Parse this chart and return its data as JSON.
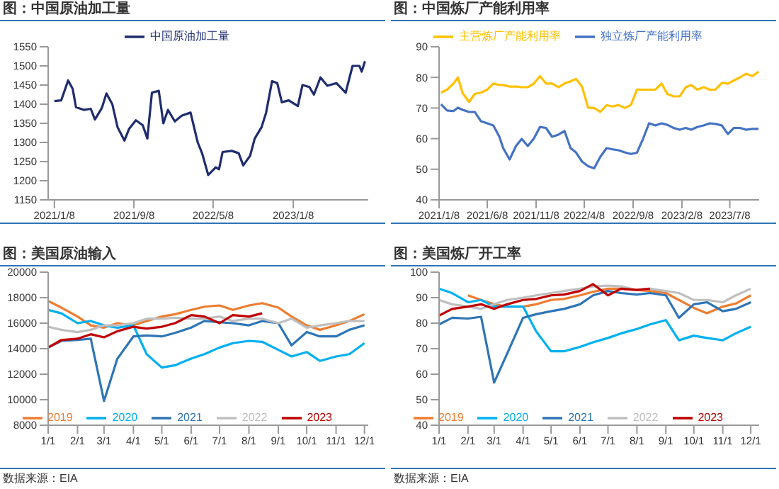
{
  "chart_data": [
    {
      "type": "line",
      "title": "图：中国原油加工量",
      "legend": "top",
      "ylim": [
        1150,
        1550
      ],
      "yticks": [
        1150,
        1200,
        1250,
        1300,
        1350,
        1400,
        1450,
        1500,
        1550
      ],
      "xlim": [
        "2020-12-20",
        "2023-08-25"
      ],
      "xticks": [
        {
          "value": "2021-01-08",
          "label": "2021/1/8"
        },
        {
          "value": "2021-09-08",
          "label": "2021/9/8"
        },
        {
          "value": "2022-05-08",
          "label": "2022/5/8"
        },
        {
          "value": "2023-01-08",
          "label": "2023/1/8"
        }
      ],
      "x": [
        "2021-01-08",
        "2021-01-29",
        "2021-02-19",
        "2021-03-05",
        "2021-03-15",
        "2021-04-08",
        "2021-04-29",
        "2021-05-12",
        "2021-06-02",
        "2021-06-16",
        "2021-07-04",
        "2021-07-20",
        "2021-08-10",
        "2021-08-24",
        "2021-09-14",
        "2021-10-05",
        "2021-10-19",
        "2021-11-02",
        "2021-11-23",
        "2021-12-07",
        "2021-12-21",
        "2022-01-11",
        "2022-02-01",
        "2022-02-28",
        "2022-03-22",
        "2022-04-05",
        "2022-04-23",
        "2022-05-16",
        "2022-05-26",
        "2022-06-06",
        "2022-07-04",
        "2022-07-25",
        "2022-08-08",
        "2022-08-29",
        "2022-09-12",
        "2022-10-03",
        "2022-10-17",
        "2022-11-04",
        "2022-11-20",
        "2022-12-04",
        "2022-12-25",
        "2023-01-22",
        "2023-02-05",
        "2023-02-26",
        "2023-03-12",
        "2023-04-01",
        "2023-04-22",
        "2023-05-20",
        "2023-06-17",
        "2023-07-08",
        "2023-07-29",
        "2023-08-05",
        "2023-08-15"
      ],
      "series": [
        {
          "name": "中国原油加工量",
          "color": "#1f2d6e",
          "values": [
            1408,
            1410,
            1462,
            1440,
            1392,
            1385,
            1388,
            1360,
            1390,
            1428,
            1400,
            1340,
            1305,
            1335,
            1358,
            1345,
            1310,
            1430,
            1435,
            1350,
            1385,
            1355,
            1370,
            1378,
            1300,
            1270,
            1215,
            1235,
            1230,
            1275,
            1278,
            1272,
            1240,
            1265,
            1310,
            1340,
            1378,
            1460,
            1455,
            1405,
            1410,
            1395,
            1450,
            1445,
            1425,
            1470,
            1448,
            1455,
            1430,
            1500,
            1500,
            1485,
            1512
          ]
        }
      ]
    },
    {
      "type": "line",
      "title": "图：中国炼厂产能利用率",
      "legend": "top",
      "ylim": [
        40,
        90
      ],
      "yticks": [
        40,
        50,
        60,
        70,
        80,
        90
      ],
      "xlim": [
        "2021-01-08",
        "2023-10-08"
      ],
      "xticks": [
        {
          "value": "2021-01-08",
          "label": "2021/1/8"
        },
        {
          "value": "2021-06-08",
          "label": "2021/6/8"
        },
        {
          "value": "2021-11-08",
          "label": "2021/11/8"
        },
        {
          "value": "2022-04-08",
          "label": "2022/4/8"
        },
        {
          "value": "2022-09-08",
          "label": "2022/9/8"
        },
        {
          "value": "2023-02-08",
          "label": "2023/2/8"
        },
        {
          "value": "2023-07-08",
          "label": "2023/7/8"
        }
      ],
      "x": [
        "2021-01-14",
        "2021-02-02",
        "2021-02-22",
        "2021-03-08",
        "2021-03-23",
        "2021-04-12",
        "2021-04-30",
        "2021-05-19",
        "2021-06-08",
        "2021-06-27",
        "2021-07-16",
        "2021-07-28",
        "2021-08-17",
        "2021-09-06",
        "2021-09-24",
        "2021-10-13",
        "2021-11-01",
        "2021-11-20",
        "2021-12-09",
        "2021-12-28",
        "2022-01-17",
        "2022-02-05",
        "2022-02-24",
        "2022-03-13",
        "2022-04-01",
        "2022-04-20",
        "2022-05-09",
        "2022-05-28",
        "2022-06-17",
        "2022-07-06",
        "2022-07-24",
        "2022-08-13",
        "2022-09-01",
        "2022-09-20",
        "2022-10-09",
        "2022-10-28",
        "2022-11-17",
        "2022-12-06",
        "2022-12-24",
        "2023-01-13",
        "2023-02-01",
        "2023-02-20",
        "2023-03-09",
        "2023-03-28",
        "2023-04-17",
        "2023-05-06",
        "2023-05-24",
        "2023-06-13",
        "2023-07-02",
        "2023-07-21",
        "2023-08-09",
        "2023-08-28",
        "2023-09-17",
        "2023-10-06"
      ],
      "series": [
        {
          "name": "主营炼厂产能利用率",
          "color": "#ffc000",
          "values": [
            75,
            76,
            78,
            80,
            74.8,
            72,
            74.6,
            75,
            76,
            78,
            77.5,
            77.5,
            77,
            77,
            76.8,
            76.8,
            78,
            80.4,
            78,
            78,
            76.8,
            78,
            78.7,
            79.5,
            77,
            70.1,
            70,
            68.7,
            70.9,
            70.5,
            71,
            70,
            71,
            76,
            76,
            76,
            76,
            78,
            74.6,
            73.8,
            73.8,
            76.8,
            77.5,
            76,
            76.8,
            76,
            76,
            78.2,
            78,
            79,
            80,
            81.2,
            80.4,
            81.9
          ]
        },
        {
          "name": "独立炼厂产能利用率",
          "color": "#4472c4",
          "values": [
            71.2,
            69.2,
            69,
            70.1,
            69.4,
            68.7,
            68.7,
            65.7,
            65,
            64.3,
            60.6,
            56.9,
            53.2,
            57.6,
            59.9,
            57.6,
            60,
            63.8,
            63.5,
            60.6,
            61.3,
            62.5,
            56.9,
            55.5,
            52.5,
            51,
            50.3,
            54,
            56.9,
            56.5,
            56.2,
            55.5,
            55,
            55.4,
            59.9,
            65,
            64.3,
            65,
            64.5,
            63.5,
            62.9,
            63.5,
            62.9,
            63.8,
            64.3,
            65,
            64.8,
            64.3,
            61.5,
            63.5,
            63.5,
            62.9,
            63.2,
            63.2
          ]
        }
      ]
    },
    {
      "type": "line",
      "title": "图：美国原油输入",
      "legend": "bottom",
      "annotations": [
        "数据来源：EIA"
      ],
      "ylim": [
        8000,
        20000
      ],
      "yticks": [
        8000,
        10000,
        12000,
        14000,
        16000,
        18000,
        20000
      ],
      "xlim": [
        "--01-01",
        "--12-05"
      ],
      "xticks": [
        {
          "value": "--01-01",
          "label": "1/1"
        },
        {
          "value": "--02-01",
          "label": "2/1"
        },
        {
          "value": "--03-01",
          "label": "3/1"
        },
        {
          "value": "--04-01",
          "label": "4/1"
        },
        {
          "value": "--05-01",
          "label": "5/1"
        },
        {
          "value": "--06-01",
          "label": "6/1"
        },
        {
          "value": "--07-01",
          "label": "7/1"
        },
        {
          "value": "--08-01",
          "label": "8/1"
        },
        {
          "value": "--09-01",
          "label": "9/1"
        },
        {
          "value": "--10-01",
          "label": "10/1"
        },
        {
          "value": "--11-01",
          "label": "11/1"
        },
        {
          "value": "--12-01",
          "label": "12/1"
        }
      ],
      "x": [
        "--01-01",
        "--01-15",
        "--02-01",
        "--02-15",
        "--03-01",
        "--03-15",
        "--04-01",
        "--04-15",
        "--05-01",
        "--05-15",
        "--06-01",
        "--06-15",
        "--07-01",
        "--07-15",
        "--08-01",
        "--08-15",
        "--09-01",
        "--09-15",
        "--10-01",
        "--10-15",
        "--11-01",
        "--11-15",
        "--12-01"
      ],
      "series": [
        {
          "name": "2019",
          "color": "#ed7d31",
          "values": [
            17740,
            17220,
            16520,
            15830,
            15650,
            16000,
            15830,
            16170,
            16520,
            16700,
            17040,
            17290,
            17390,
            17040,
            17390,
            17570,
            17220,
            16520,
            15830,
            15480,
            15830,
            16170,
            16700
          ]
        },
        {
          "name": "2020",
          "color": "#00b0f0",
          "values": [
            17040,
            16770,
            16000,
            16170,
            15830,
            15650,
            15830,
            13570,
            12520,
            12700,
            13220,
            13570,
            14090,
            14430,
            14610,
            14540,
            13910,
            13390,
            13740,
            13040,
            13390,
            13570,
            14430
          ]
        },
        {
          "name": "2021",
          "color": "#2e75b6",
          "values": [
            14090,
            14610,
            14680,
            14780,
            9900,
            13200,
            14960,
            15030,
            14960,
            15240,
            15650,
            16170,
            16070,
            16000,
            15830,
            16170,
            16000,
            14260,
            15300,
            14960,
            14960,
            15480,
            15830
          ]
        },
        {
          "name": "2022",
          "color": "#bfbfbf",
          "values": [
            15720,
            15480,
            15300,
            15480,
            15830,
            15830,
            16000,
            16350,
            16350,
            16420,
            16350,
            16350,
            16520,
            16170,
            16350,
            16350,
            16000,
            16350,
            15650,
            15830,
            16000,
            16170,
            16170
          ]
        },
        {
          "name": "2023",
          "color": "#c00000",
          "values": [
            14090,
            14680,
            14780,
            15130,
            14890,
            15370,
            15720,
            15580,
            15720,
            16000,
            16630,
            16520,
            16000,
            16630,
            16520,
            16770,
            null,
            null,
            null,
            null,
            null,
            null,
            null
          ]
        }
      ]
    },
    {
      "type": "line",
      "title": "图：美国炼厂开工率",
      "legend": "bottom",
      "annotations": [
        "数据来源：EIA"
      ],
      "ylim": [
        40,
        100
      ],
      "yticks": [
        40,
        50,
        60,
        70,
        80,
        90,
        100
      ],
      "xlim": [
        "--01-01",
        "--12-10"
      ],
      "xticks": [
        {
          "value": "--01-01",
          "label": "1/1"
        },
        {
          "value": "--02-01",
          "label": "2/1"
        },
        {
          "value": "--03-01",
          "label": "3/1"
        },
        {
          "value": "--04-01",
          "label": "4/1"
        },
        {
          "value": "--05-01",
          "label": "5/1"
        },
        {
          "value": "--06-01",
          "label": "6/1"
        },
        {
          "value": "--07-01",
          "label": "7/1"
        },
        {
          "value": "--08-01",
          "label": "8/1"
        },
        {
          "value": "--09-01",
          "label": "9/1"
        },
        {
          "value": "--10-01",
          "label": "10/1"
        },
        {
          "value": "--11-01",
          "label": "11/1"
        },
        {
          "value": "--12-01",
          "label": "12/1"
        }
      ],
      "x": [
        "--01-01",
        "--01-15",
        "--02-01",
        "--02-15",
        "--03-01",
        "--03-15",
        "--04-01",
        "--04-15",
        "--05-01",
        "--05-15",
        "--06-01",
        "--06-15",
        "--07-01",
        "--07-15",
        "--08-01",
        "--08-15",
        "--09-01",
        "--09-15",
        "--10-01",
        "--10-15",
        "--11-01",
        "--11-15",
        "--12-01"
      ],
      "series": [
        {
          "name": "2019",
          "color": "#ed7d31",
          "values": [
            null,
            null,
            90.9,
            89.1,
            87.4,
            86.5,
            86.5,
            87.4,
            89.1,
            89.5,
            90.9,
            92.3,
            93.5,
            93.5,
            93,
            92.6,
            91.8,
            89.1,
            86,
            83.9,
            86.5,
            87.7,
            90.9
          ]
        },
        {
          "name": "2020",
          "color": "#00b0f0",
          "values": [
            93.5,
            91.8,
            88.2,
            89.1,
            86.5,
            86.5,
            86.5,
            76.8,
            69,
            69,
            70.7,
            72.5,
            74.2,
            76,
            77.7,
            79.5,
            81.2,
            73.3,
            75.1,
            74.2,
            73.3,
            76,
            78.6
          ]
        },
        {
          "name": "2021",
          "color": "#2e75b6",
          "values": [
            79.5,
            82.1,
            81.8,
            82.5,
            56.7,
            68.1,
            82.1,
            83.5,
            84.7,
            85.6,
            87.4,
            90.9,
            92.6,
            91.8,
            91.2,
            91.8,
            90.9,
            82.1,
            87.4,
            88.2,
            84.7,
            85.6,
            88.2
          ]
        },
        {
          "name": "2022",
          "color": "#bfbfbf",
          "values": [
            89.1,
            87.4,
            86.5,
            85.6,
            87.4,
            89.1,
            90,
            90.9,
            91.8,
            92.6,
            93.5,
            94.4,
            94.7,
            94.4,
            93,
            93.5,
            92.6,
            91.8,
            89.1,
            89.1,
            88.2,
            90.9,
            93.5
          ]
        },
        {
          "name": "2023",
          "color": "#c00000",
          "values": [
            83,
            85.6,
            86.5,
            87.4,
            85.6,
            87.4,
            89.1,
            89.5,
            90.9,
            91.2,
            92.6,
            95.3,
            90.9,
            93.5,
            93,
            93.5,
            null,
            null,
            null,
            null,
            null,
            null,
            null
          ]
        }
      ]
    }
  ]
}
